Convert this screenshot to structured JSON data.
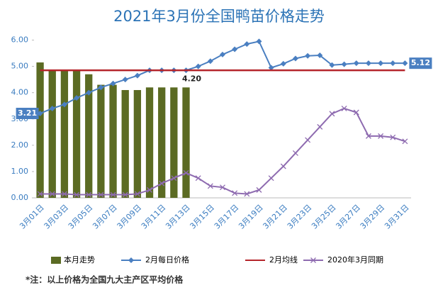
{
  "chart_data": {
    "type": "combo",
    "title": "2021年3月份全国鸭苗价格走势",
    "categories": [
      "3月01日",
      null,
      "3月03日",
      null,
      "3月05日",
      null,
      "3月07日",
      null,
      "3月09日",
      null,
      "3月11日",
      null,
      "3月13日",
      null,
      "3月15日",
      null,
      "3月17日",
      null,
      "3月19日",
      null,
      "3月21日",
      null,
      "3月23日",
      null,
      "3月25日",
      null,
      "3月27日",
      null,
      "3月29日",
      null,
      "3月31日"
    ],
    "ylim": [
      0,
      6.5
    ],
    "yticks": [
      {
        "value": 0,
        "label": "0.00"
      },
      {
        "value": 1,
        "label": "1.00"
      },
      {
        "value": 2,
        "label": "2.00"
      },
      {
        "value": 3,
        "label": "3.00"
      },
      {
        "value": 4,
        "label": "4.00"
      },
      {
        "value": 5,
        "label": "5.00"
      },
      {
        "value": 6,
        "label": "6.00"
      }
    ],
    "series": [
      {
        "name": "本月走势",
        "type": "bar",
        "color": "#5b6b23",
        "values": [
          5.15,
          4.85,
          4.85,
          4.85,
          4.7,
          4.3,
          4.3,
          4.1,
          4.1,
          4.2,
          4.2,
          4.2,
          4.2,
          null,
          null,
          null,
          null,
          null,
          null,
          null,
          null,
          null,
          null,
          null,
          null,
          null,
          null,
          null,
          null,
          null,
          null
        ],
        "value_labels": [
          null,
          null,
          null,
          null,
          null,
          null,
          null,
          null,
          null,
          null,
          null,
          null,
          "4.20",
          null,
          null,
          null,
          null,
          null,
          null,
          null,
          null,
          null,
          null,
          null,
          null,
          null,
          null,
          null,
          null,
          null,
          null
        ]
      },
      {
        "name": "2月每日价格",
        "type": "line",
        "marker": "diamond",
        "color": "#4a7fc1",
        "values": [
          3.21,
          3.4,
          3.55,
          3.8,
          4.0,
          4.2,
          4.35,
          4.5,
          4.65,
          4.85,
          4.85,
          4.85,
          4.85,
          5.0,
          5.2,
          5.45,
          5.65,
          5.85,
          5.95,
          4.95,
          5.1,
          5.3,
          5.4,
          5.42,
          5.05,
          5.08,
          5.12,
          5.12,
          5.12,
          5.12,
          5.12
        ],
        "value_labels": [
          "3.21",
          null,
          null,
          null,
          null,
          null,
          null,
          null,
          null,
          null,
          null,
          null,
          null,
          null,
          null,
          null,
          null,
          null,
          null,
          null,
          null,
          null,
          null,
          null,
          null,
          null,
          null,
          null,
          null,
          null,
          "5.12"
        ]
      },
      {
        "name": "2月均线",
        "type": "line",
        "marker": "none",
        "color": "#b5252b",
        "values": [
          4.85,
          4.85,
          4.85,
          4.85,
          4.85,
          4.85,
          4.85,
          4.85,
          4.85,
          4.85,
          4.85,
          4.85,
          4.85,
          4.85,
          4.85,
          4.85,
          4.85,
          4.85,
          4.85,
          4.85,
          4.85,
          4.85,
          4.85,
          4.85,
          4.85,
          4.85,
          4.85,
          4.85,
          4.85,
          4.85,
          4.85
        ]
      },
      {
        "name": "2020年3月同期",
        "type": "line",
        "marker": "x",
        "color": "#8e6bb0",
        "values": [
          0.15,
          0.15,
          0.15,
          0.12,
          0.12,
          0.12,
          0.12,
          0.12,
          0.15,
          0.3,
          0.55,
          0.75,
          0.95,
          0.75,
          0.45,
          0.4,
          0.18,
          0.15,
          0.3,
          0.75,
          1.2,
          1.7,
          2.2,
          2.7,
          3.2,
          3.4,
          3.25,
          2.35,
          2.35,
          2.3,
          2.15
        ]
      }
    ],
    "footnote": "*注：以上价格为全国九大主产区平均价格"
  }
}
